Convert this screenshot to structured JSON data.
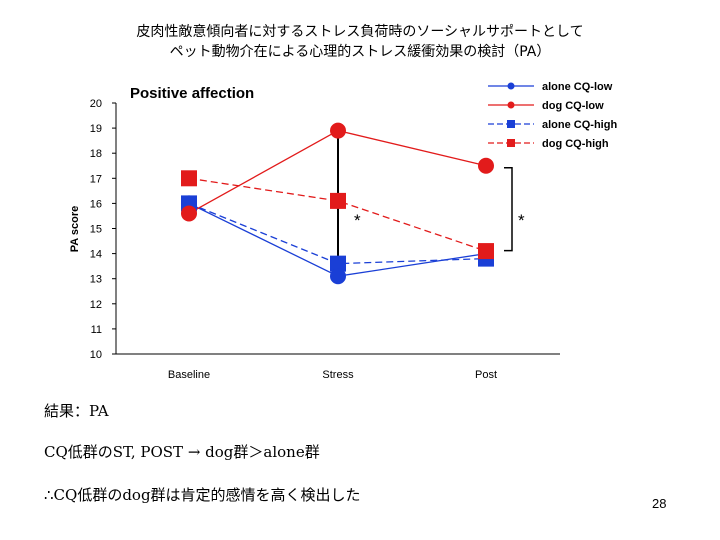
{
  "slide": {
    "title_line1": "皮肉性敵意傾向者に対するストレス負荷時のソーシャルサポートとして",
    "title_line2": "ペット動物介在による心理的ストレス緩衝効果の検討（PA）",
    "result_heading": "結果：PA",
    "finding": "CQ低群のST, POST → dog群＞alone群",
    "conclusion": "∴CQ低群のdog群は肯定的感情を高く検出した",
    "page_number": "28"
  },
  "chart_data": {
    "type": "line",
    "title": "Positive affection",
    "xlabel": "",
    "ylabel": "PA score",
    "categories": [
      "Baseline",
      "Stress",
      "Post"
    ],
    "ylim": [
      10,
      20
    ],
    "yticks": [
      "10",
      "11",
      "12",
      "13",
      "14",
      "15",
      "16",
      "17",
      "18",
      "19",
      "20"
    ],
    "grid": false,
    "legend_position": "top-right",
    "series": [
      {
        "name": "alone CQ-low",
        "values": [
          16.0,
          13.1,
          14.0
        ],
        "color": "#1a3fd6",
        "marker": "circle",
        "dash": false
      },
      {
        "name": "dog CQ-low",
        "values": [
          15.6,
          18.9,
          17.5
        ],
        "color": "#e21b1b",
        "marker": "circle",
        "dash": false
      },
      {
        "name": "alone CQ-high",
        "values": [
          16.0,
          13.6,
          13.8
        ],
        "color": "#1a3fd6",
        "marker": "square",
        "dash": true
      },
      {
        "name": "dog CQ-high",
        "values": [
          17.0,
          16.1,
          14.1
        ],
        "color": "#e21b1b",
        "marker": "square",
        "dash": true
      }
    ],
    "annotations": [
      {
        "type": "significance-bar",
        "at": "Stress",
        "from": 13.1,
        "to": 18.9,
        "label": "*"
      },
      {
        "type": "significance-bracket",
        "at": "Post",
        "from": 14.0,
        "to": 17.5,
        "label": "*"
      }
    ]
  }
}
